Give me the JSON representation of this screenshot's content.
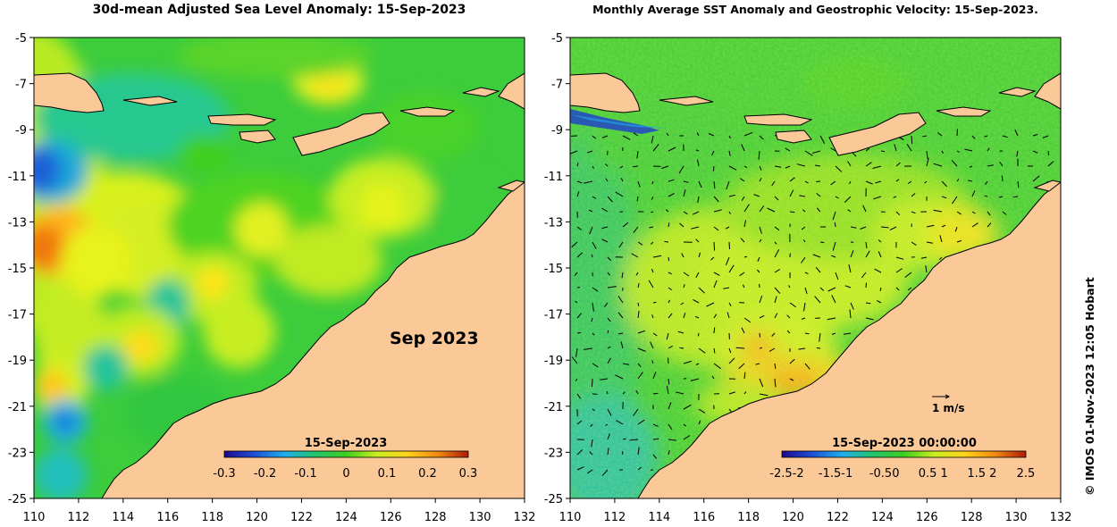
{
  "left_map": {
    "title": "30d-mean Adjusted Sea Level Anomaly: 15-Sep-2023",
    "month_label": "Sep 2023",
    "colorbar": {
      "date": "15-Sep-2023",
      "ticks": [
        "-0.3",
        "-0.2",
        "-0.1",
        "0",
        "0.1",
        "0.2",
        "0.3"
      ],
      "range": [
        -0.3,
        0.3
      ],
      "colors": [
        "#1a0a8c",
        "#1f4fd8",
        "#1fb0e8",
        "#22c46a",
        "#3fcf1f",
        "#c8ef20",
        "#ffd21a",
        "#f08a10",
        "#b01a08"
      ]
    }
  },
  "right_map": {
    "title": "Monthly Average SST Anomaly  and Geostrophic Velocity: 15-Sep-2023.",
    "velocity_scale": "1 m/s",
    "colorbar": {
      "date": "15-Sep-2023 00:00:00",
      "ticks": [
        "-2.5-2",
        "-1.5-1",
        "-0.50",
        "0.5 1",
        "1.5 2",
        "2.5"
      ],
      "range": [
        -2.5,
        2.5
      ],
      "colors": [
        "#1a0a8c",
        "#1f4fd8",
        "#1fb0e8",
        "#22c46a",
        "#3fcf1f",
        "#c8ef20",
        "#ffd21a",
        "#f08a10",
        "#b01a08"
      ]
    }
  },
  "axes": {
    "lon_ticks": [
      "110",
      "112",
      "114",
      "116",
      "118",
      "120",
      "122",
      "124",
      "126",
      "128",
      "130",
      "132"
    ],
    "lat_ticks": [
      "-5",
      "-7",
      "-9",
      "-11",
      "-13",
      "-15",
      "-17",
      "-19",
      "-21",
      "-23",
      "-25"
    ],
    "lon_range": [
      110,
      132
    ],
    "lat_range": [
      -25,
      -5
    ]
  },
  "credit": "© IMOS 01-Nov-2023 12:05 Hobart",
  "colors": {
    "land": "#fbc898",
    "coast": "#000000",
    "sea_base": "#3ccc3c"
  }
}
